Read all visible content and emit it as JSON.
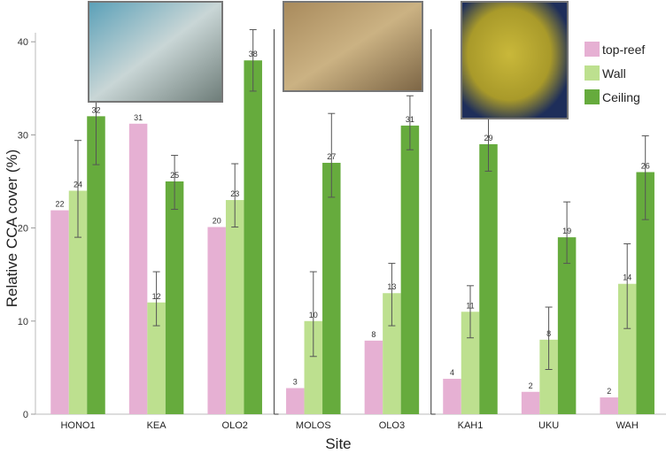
{
  "chart_data": {
    "type": "bar",
    "title": "",
    "xlabel": "Site",
    "ylabel": "Relative CCA cover (%)",
    "ylim": [
      0,
      41
    ],
    "yticks": [
      0,
      10,
      20,
      30,
      40
    ],
    "grid": false,
    "legend_position": "top-right",
    "categories": [
      "HONO1",
      "KEA",
      "OLO2",
      "MOLOS",
      "OLO3",
      "KAH1",
      "UKU",
      "WAH"
    ],
    "group_dividers_after": [
      "OLO2",
      "OLO3"
    ],
    "series": [
      {
        "name": "top-reef",
        "color": "#e6b0d3",
        "values": [
          21.9,
          31.2,
          20.1,
          2.8,
          7.9,
          3.8,
          2.4,
          1.8
        ],
        "labels": [
          "22",
          "31",
          "20",
          "3",
          "8",
          "4",
          "2",
          "2"
        ],
        "error": null
      },
      {
        "name": "Wall",
        "color": "#bde08f",
        "values": [
          24,
          12,
          23,
          10,
          13,
          11,
          8,
          14
        ],
        "labels": [
          "24",
          "12",
          "23",
          "10",
          "13",
          "11",
          "8",
          "14"
        ],
        "error_low": [
          19.0,
          9.5,
          20.1,
          6.2,
          9.5,
          8.2,
          4.8,
          9.2
        ],
        "error_high": [
          29.4,
          15.3,
          26.9,
          15.3,
          16.2,
          13.8,
          11.5,
          18.3
        ]
      },
      {
        "name": "Ceiling",
        "color": "#66ab3d",
        "values": [
          32,
          25,
          38,
          27,
          31,
          29,
          19,
          26
        ],
        "labels": [
          "32",
          "25",
          "38",
          "27",
          "31",
          "29",
          "19",
          "26"
        ],
        "error_low": [
          26.8,
          22.0,
          34.7,
          23.3,
          28.4,
          26.1,
          16.2,
          20.9
        ],
        "error_high": [
          37.2,
          27.8,
          41.3,
          32.3,
          34.2,
          32.0,
          22.8,
          29.9
        ]
      }
    ],
    "inset_photos": [
      "branching-coral-photo",
      "plate-coral-photo",
      "massive-coral-photo"
    ]
  }
}
